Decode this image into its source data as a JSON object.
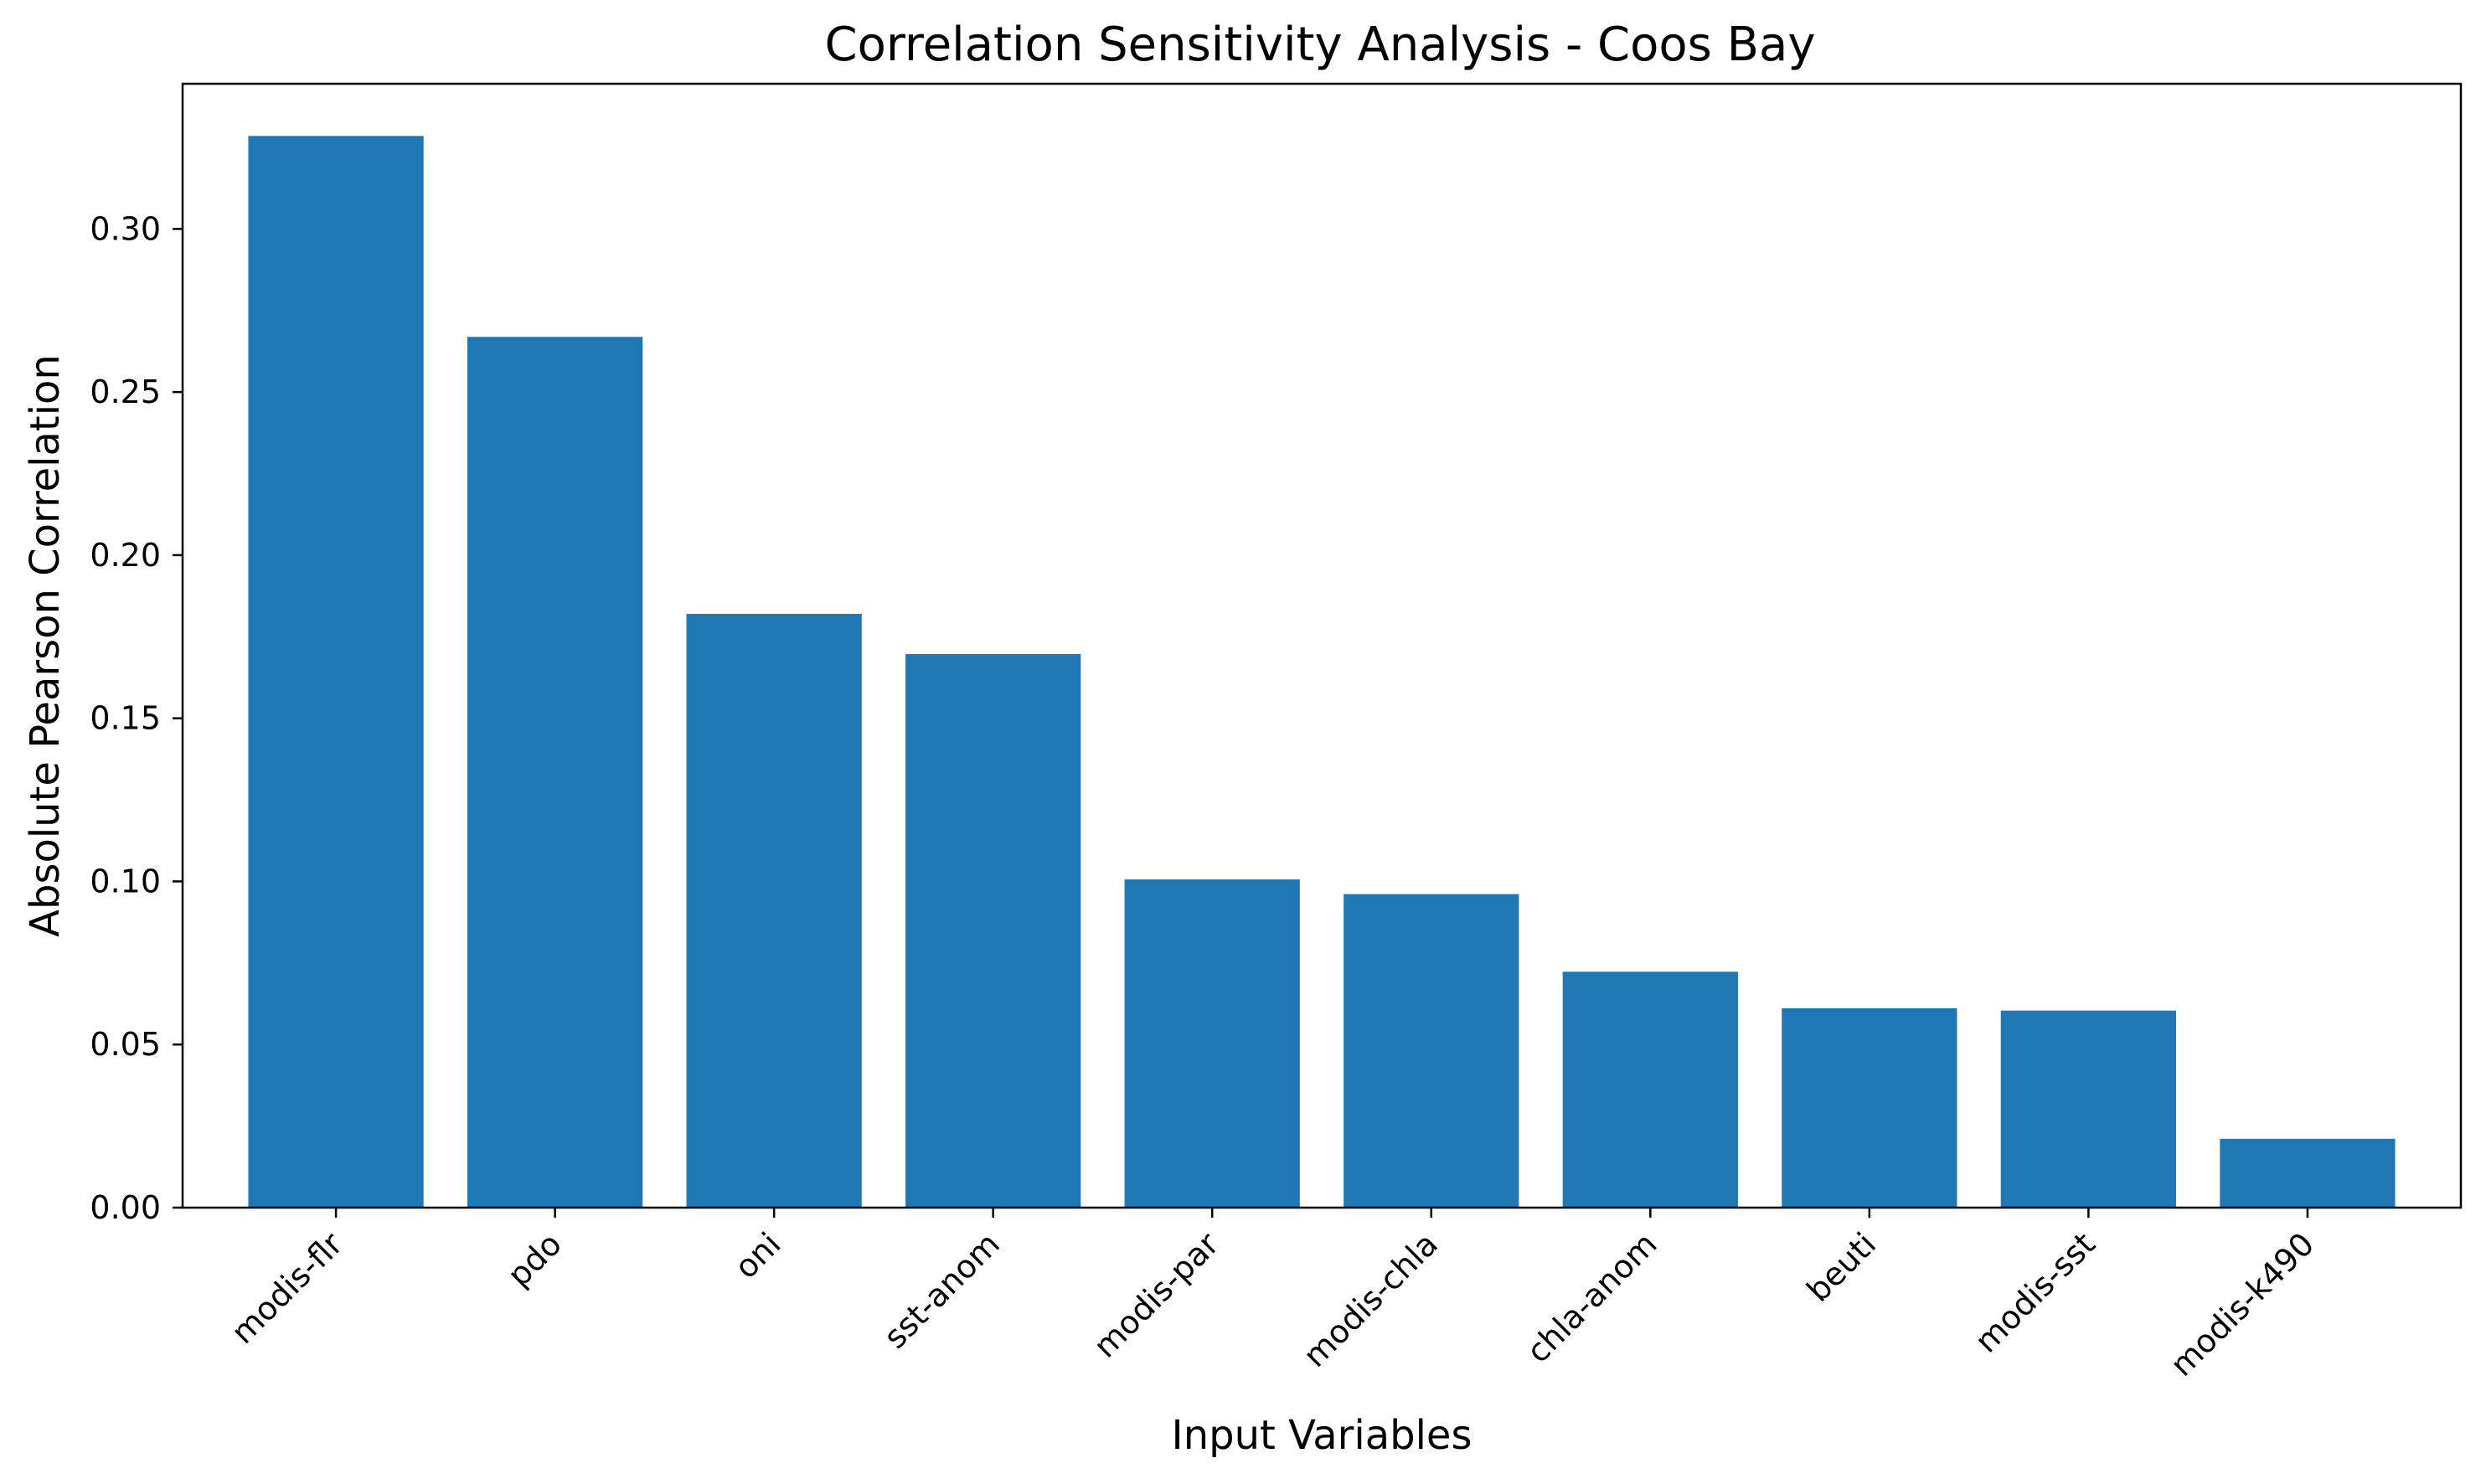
{
  "chart_data": {
    "type": "bar",
    "title": "Correlation Sensitivity Analysis - Coos Bay",
    "xlabel": "Input Variables",
    "ylabel": "Absolute Pearson Correlation",
    "categories": [
      "modis-flr",
      "pdo",
      "oni",
      "sst-anom",
      "modis-par",
      "modis-chla",
      "chla-anom",
      "beuti",
      "modis-sst",
      "modis-k490"
    ],
    "values": [
      0.3285,
      0.2669,
      0.182,
      0.1697,
      0.1006,
      0.0961,
      0.0723,
      0.0611,
      0.0604,
      0.0211
    ],
    "ylim": [
      0,
      0.3445
    ],
    "yticks": [
      0.0,
      0.05,
      0.1,
      0.15,
      0.2,
      0.25,
      0.3
    ],
    "ytick_labels": [
      "0.00",
      "0.05",
      "0.10",
      "0.15",
      "0.20",
      "0.25",
      "0.30"
    ],
    "bar_color": "#1f77b4",
    "grid": false,
    "legend": "none"
  }
}
